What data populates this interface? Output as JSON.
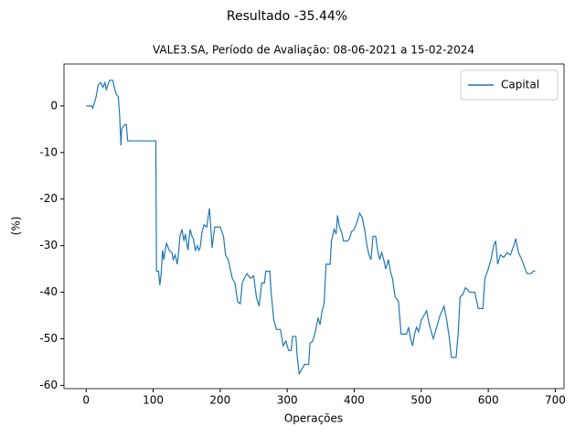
{
  "chart_data": {
    "type": "line",
    "title": "Resultado -35.44%",
    "subtitle": "VALE3.SA, Período de Avaliação: 08-06-2021 a 15-02-2024",
    "x_label": "Operações",
    "y_label": "(%)",
    "legend": "upper right",
    "grid": false,
    "xlim": [
      -33,
      713
    ],
    "ylim": [
      -60.7,
      9
    ],
    "xticks": [
      0,
      100,
      200,
      300,
      400,
      500,
      600,
      700
    ],
    "yticks": [
      -60,
      -50,
      -40,
      -30,
      -20,
      -10,
      0
    ],
    "x": [
      0,
      8,
      10,
      12,
      15,
      18,
      22,
      25,
      28,
      30,
      35,
      40,
      42,
      45,
      48,
      50,
      52,
      53,
      55,
      58,
      60,
      62,
      70,
      80,
      90,
      100,
      104,
      105,
      108,
      110,
      112,
      114,
      116,
      118,
      120,
      124,
      128,
      130,
      133,
      136,
      138,
      140,
      143,
      146,
      148,
      152,
      155,
      158,
      160,
      163,
      166,
      168,
      170,
      173,
      176,
      180,
      184,
      186,
      188,
      190,
      192,
      196,
      200,
      205,
      208,
      212,
      218,
      222,
      226,
      230,
      233,
      236,
      240,
      245,
      250,
      254,
      258,
      262,
      266,
      268,
      274,
      276,
      280,
      284,
      290,
      294,
      298,
      302,
      306,
      308,
      313,
      315,
      318,
      322,
      326,
      332,
      334,
      338,
      342,
      346,
      349,
      352,
      355,
      358,
      364,
      366,
      370,
      373,
      375,
      378,
      381,
      384,
      390,
      393,
      396,
      400,
      404,
      408,
      412,
      416,
      419,
      422,
      425,
      428,
      432,
      435,
      438,
      441,
      444,
      447,
      451,
      454,
      457,
      461,
      466,
      470,
      478,
      481,
      484,
      487,
      490,
      493,
      496,
      500,
      504,
      508,
      512,
      518,
      528,
      534,
      538,
      542,
      545,
      552,
      555,
      558,
      562,
      566,
      572,
      580,
      585,
      592,
      595,
      600,
      604,
      608,
      611,
      614,
      618,
      623,
      628,
      633,
      638,
      641,
      645,
      650,
      655,
      658,
      664,
      667,
      670
    ],
    "series": [
      {
        "name": "Capital",
        "color": "#1f77b4",
        "values": [
          0,
          0,
          -0.5,
          0.5,
          2,
          4.5,
          5,
          4,
          5,
          3.5,
          5.5,
          5.5,
          4,
          2.5,
          2,
          -2,
          -8.5,
          -5,
          -4.5,
          -4,
          -4,
          -7.5,
          -7.5,
          -7.5,
          -7.5,
          -7.5,
          -7.5,
          -35.5,
          -35.5,
          -38.5,
          -36,
          -31,
          -33,
          -31,
          -29.5,
          -31,
          -31.5,
          -33,
          -32,
          -34,
          -31.5,
          -28,
          -26.5,
          -29,
          -27.5,
          -31,
          -26.5,
          -28,
          -28.5,
          -31,
          -30,
          -31,
          -30.5,
          -27,
          -25.5,
          -26,
          -22,
          -26,
          -30.5,
          -28,
          -26,
          -26,
          -26,
          -28,
          -32,
          -33,
          -37,
          -38,
          -42,
          -42.5,
          -38,
          -37,
          -36,
          -37,
          -36.5,
          -41,
          -43,
          -38,
          -38,
          -35.5,
          -35.5,
          -40,
          -46,
          -48,
          -48,
          -51.5,
          -50.5,
          -52.5,
          -52.5,
          -49.5,
          -49.5,
          -54,
          -57.5,
          -56.5,
          -55.5,
          -55.5,
          -51,
          -50.5,
          -48.5,
          -45.5,
          -47,
          -44,
          -42.5,
          -34,
          -34,
          -29,
          -26.5,
          -27.5,
          -23.5,
          -26,
          -27,
          -29,
          -29,
          -28.5,
          -27,
          -26.5,
          -25,
          -23,
          -24,
          -27,
          -30,
          -32,
          -33,
          -28,
          -28,
          -31,
          -33,
          -31.5,
          -33,
          -35,
          -33,
          -35.5,
          -37,
          -41,
          -42,
          -49,
          -49,
          -47.5,
          -50,
          -51.5,
          -49,
          -47.5,
          -48.5,
          -46,
          -45,
          -44,
          -47,
          -50,
          -45,
          -43,
          -46,
          -50,
          -54,
          -54,
          -49,
          -41,
          -40.5,
          -39,
          -40,
          -40,
          -43.5,
          -43.5,
          -37,
          -35,
          -33,
          -30,
          -29,
          -34,
          -32,
          -32.5,
          -31.5,
          -32,
          -30,
          -28.5,
          -31.5,
          -33,
          -35,
          -36,
          -36,
          -35.5,
          -35.44
        ]
      }
    ]
  }
}
